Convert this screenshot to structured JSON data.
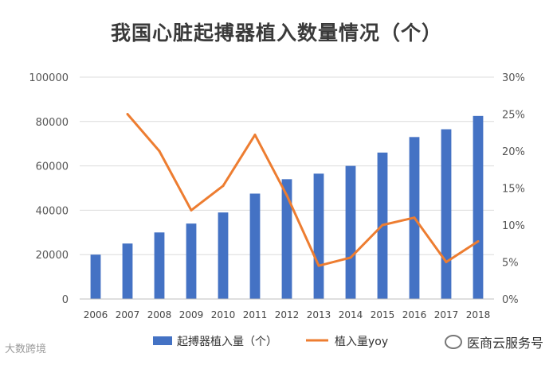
{
  "chart_data": {
    "type": "bar+line",
    "title": "我国心脏起搏器植入数量情况（个）",
    "categories": [
      "2006",
      "2007",
      "2008",
      "2009",
      "2010",
      "2011",
      "2012",
      "2013",
      "2014",
      "2015",
      "2016",
      "2017",
      "2018"
    ],
    "series": [
      {
        "name": "起搏器植入量（个）",
        "type": "bar",
        "axis": "left",
        "color": "#4472c4",
        "values": [
          20000,
          25000,
          30000,
          34000,
          39000,
          47500,
          54000,
          56500,
          60000,
          66000,
          73000,
          76500,
          82500
        ]
      },
      {
        "name": "植入量yoy",
        "type": "line",
        "axis": "right",
        "color": "#ed7d31",
        "values": [
          null,
          0.25,
          0.2,
          0.12,
          0.153,
          0.222,
          0.14,
          0.045,
          0.056,
          0.1,
          0.11,
          0.05,
          0.078
        ]
      }
    ],
    "y_left": {
      "min": 0,
      "max": 100000,
      "ticks": [
        "0",
        "20000",
        "40000",
        "60000",
        "80000",
        "100000"
      ]
    },
    "y_right": {
      "min": 0,
      "max": 0.3,
      "ticks": [
        "0%",
        "5%",
        "10%",
        "15%",
        "20%",
        "25%",
        "30%"
      ]
    },
    "grid": true,
    "legend": "bottom"
  },
  "watermark": {
    "left": "大数跨境",
    "right": "医商云服务号"
  }
}
